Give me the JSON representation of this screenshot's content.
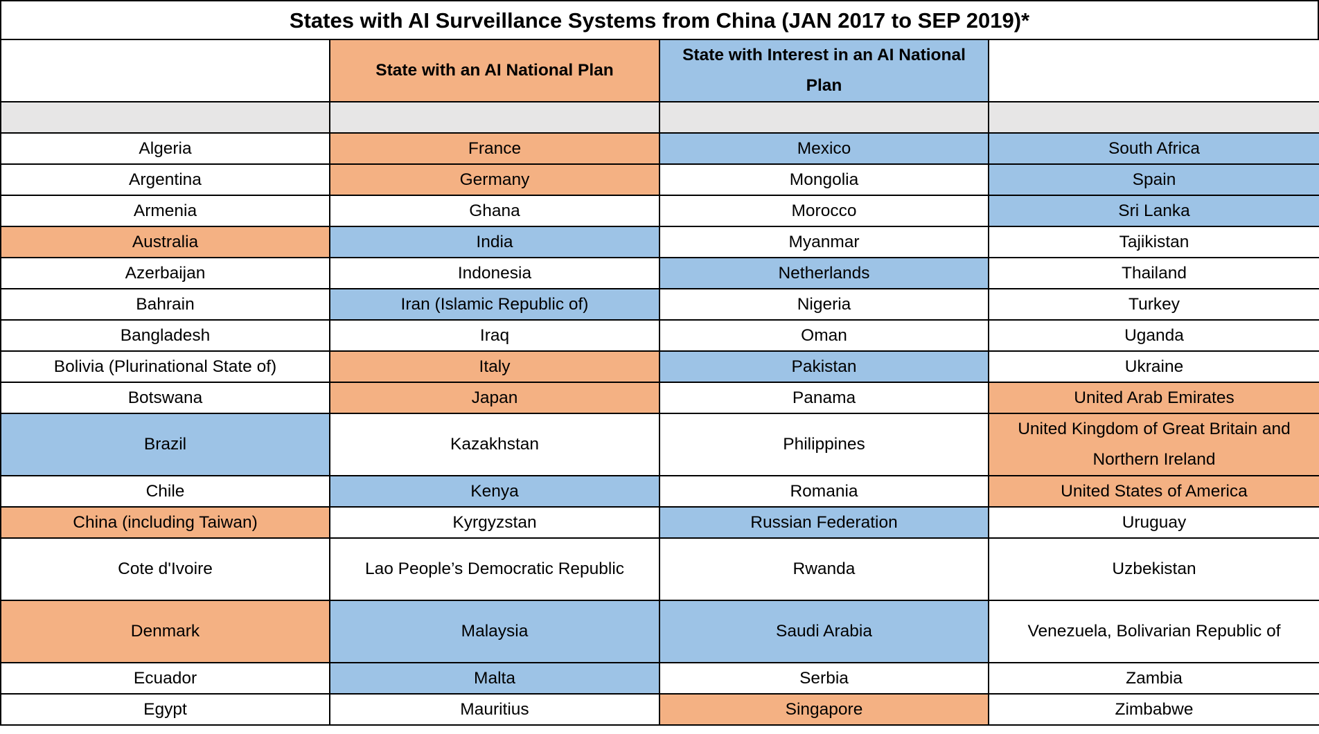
{
  "title": "States with AI Surveillance Systems from China (JAN 2017 to SEP 2019)*",
  "colors": {
    "orange": "#F4B183",
    "blue": "#9DC3E6",
    "gray": "#E7E6E6"
  },
  "headers": [
    {
      "text": "",
      "fill": ""
    },
    {
      "text": "State with an AI National Plan",
      "fill": "orange"
    },
    {
      "text": "State with Interest in an AI National Plan",
      "fill": "blue"
    },
    {
      "text": "",
      "fill": ""
    }
  ],
  "rows": [
    [
      {
        "text": "Algeria",
        "fill": ""
      },
      {
        "text": "France",
        "fill": "orange"
      },
      {
        "text": "Mexico",
        "fill": "blue"
      },
      {
        "text": "South Africa",
        "fill": "blue"
      }
    ],
    [
      {
        "text": "Argentina",
        "fill": ""
      },
      {
        "text": "Germany",
        "fill": "orange"
      },
      {
        "text": "Mongolia",
        "fill": ""
      },
      {
        "text": "Spain",
        "fill": "blue"
      }
    ],
    [
      {
        "text": "Armenia",
        "fill": ""
      },
      {
        "text": "Ghana",
        "fill": ""
      },
      {
        "text": "Morocco",
        "fill": ""
      },
      {
        "text": "Sri Lanka",
        "fill": "blue"
      }
    ],
    [
      {
        "text": "Australia",
        "fill": "orange"
      },
      {
        "text": "India",
        "fill": "blue"
      },
      {
        "text": "Myanmar",
        "fill": ""
      },
      {
        "text": "Tajikistan",
        "fill": ""
      }
    ],
    [
      {
        "text": "Azerbaijan",
        "fill": ""
      },
      {
        "text": "Indonesia",
        "fill": ""
      },
      {
        "text": "Netherlands",
        "fill": "blue"
      },
      {
        "text": "Thailand",
        "fill": ""
      }
    ],
    [
      {
        "text": "Bahrain",
        "fill": ""
      },
      {
        "text": "Iran (Islamic Republic of)",
        "fill": "blue"
      },
      {
        "text": "Nigeria",
        "fill": ""
      },
      {
        "text": "Turkey",
        "fill": ""
      }
    ],
    [
      {
        "text": "Bangladesh",
        "fill": ""
      },
      {
        "text": "Iraq",
        "fill": ""
      },
      {
        "text": "Oman",
        "fill": ""
      },
      {
        "text": "Uganda",
        "fill": ""
      }
    ],
    [
      {
        "text": "Bolivia (Plurinational State of)",
        "fill": ""
      },
      {
        "text": "Italy",
        "fill": "orange"
      },
      {
        "text": "Pakistan",
        "fill": "blue"
      },
      {
        "text": "Ukraine",
        "fill": ""
      }
    ],
    [
      {
        "text": "Botswana",
        "fill": ""
      },
      {
        "text": "Japan",
        "fill": "orange"
      },
      {
        "text": "Panama",
        "fill": ""
      },
      {
        "text": "United Arab Emirates",
        "fill": "orange"
      }
    ],
    [
      {
        "text": "Brazil",
        "fill": "blue"
      },
      {
        "text": "Kazakhstan",
        "fill": ""
      },
      {
        "text": "Philippines",
        "fill": ""
      },
      {
        "text": "United Kingdom of Great Britain and Northern Ireland",
        "fill": "orange"
      }
    ],
    [
      {
        "text": "Chile",
        "fill": ""
      },
      {
        "text": "Kenya",
        "fill": "blue"
      },
      {
        "text": "Romania",
        "fill": ""
      },
      {
        "text": "United States of America",
        "fill": "orange"
      }
    ],
    [
      {
        "text": "China (including Taiwan)",
        "fill": "orange"
      },
      {
        "text": "Kyrgyzstan",
        "fill": ""
      },
      {
        "text": "Russian Federation",
        "fill": "blue"
      },
      {
        "text": "Uruguay",
        "fill": ""
      }
    ],
    [
      {
        "text": "Cote d'Ivoire",
        "fill": ""
      },
      {
        "text": "Lao People’s Democratic Republic",
        "fill": ""
      },
      {
        "text": "Rwanda",
        "fill": ""
      },
      {
        "text": "Uzbekistan",
        "fill": ""
      }
    ],
    [
      {
        "text": "Denmark",
        "fill": "orange"
      },
      {
        "text": "Malaysia",
        "fill": "blue"
      },
      {
        "text": "Saudi Arabia",
        "fill": "blue"
      },
      {
        "text": "Venezuela, Bolivarian Republic of",
        "fill": ""
      }
    ],
    [
      {
        "text": "Ecuador",
        "fill": ""
      },
      {
        "text": "Malta",
        "fill": "blue"
      },
      {
        "text": "Serbia",
        "fill": ""
      },
      {
        "text": "Zambia",
        "fill": ""
      }
    ],
    [
      {
        "text": "Egypt",
        "fill": ""
      },
      {
        "text": "Mauritius",
        "fill": ""
      },
      {
        "text": "Singapore",
        "fill": "orange"
      },
      {
        "text": "Zimbabwe",
        "fill": ""
      }
    ]
  ]
}
